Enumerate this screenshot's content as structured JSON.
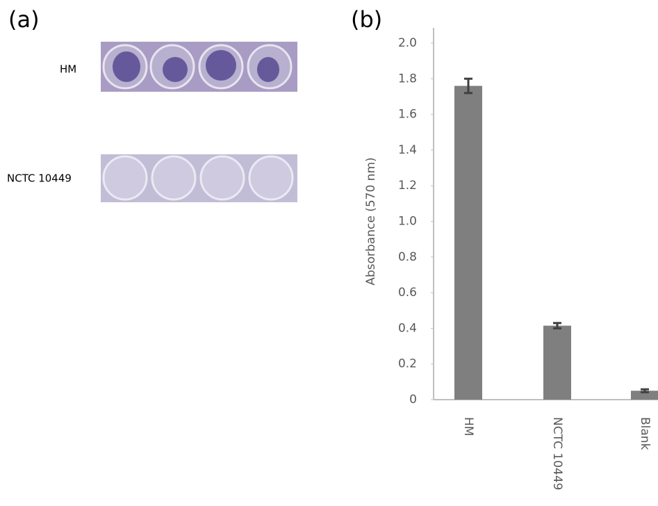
{
  "panel_labels": [
    "(a)",
    "(b)"
  ],
  "photo_rows": [
    "HM",
    "NCTC 10449"
  ],
  "chart_data": {
    "type": "bar",
    "y_label": "Absorbance (570 nm)",
    "categories": [
      "HM",
      "NCTC 10449",
      "Blank"
    ],
    "values": [
      1.76,
      0.415,
      0.05
    ],
    "errors": [
      0.04,
      0.015,
      0.008
    ],
    "color": "#7f7f7f",
    "ylim": [
      0,
      2
    ],
    "yticks": [
      0,
      0.2,
      0.4,
      0.6,
      0.8,
      {
        "value": 1,
        "label": "1.0"
      },
      1.2,
      1.4,
      1.6,
      1.8,
      {
        "value": 2,
        "label": "2.0"
      }
    ],
    "grid": false
  }
}
